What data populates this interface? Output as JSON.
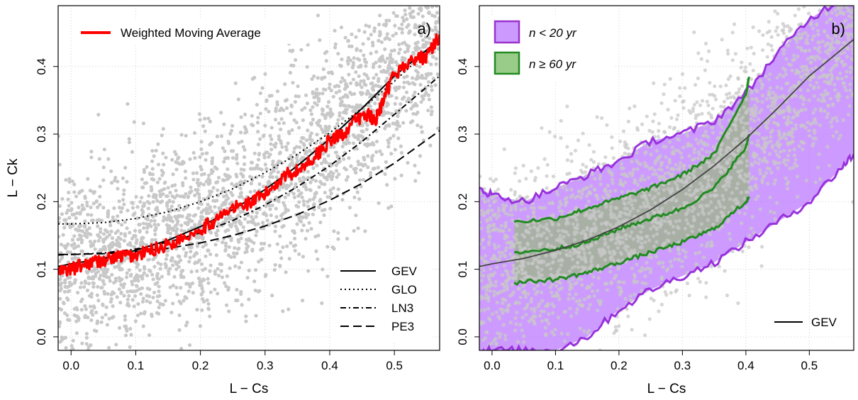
{
  "chart_data": [
    {
      "panel": "a)",
      "type": "scatter",
      "xlabel": "L − Cs",
      "ylabel": "L − Ck",
      "xlim": [
        -0.02,
        0.57
      ],
      "ylim": [
        -0.02,
        0.49
      ],
      "xticks": [
        "0.0",
        "0.1",
        "0.2",
        "0.3",
        "0.4",
        "0.5"
      ],
      "yticks": [
        "0.0",
        "0.1",
        "0.2",
        "0.3",
        "0.4"
      ],
      "grid": true,
      "scatter_color": "#c8c8c8",
      "legend_top": {
        "label": "Weighted Moving Average",
        "color": "#ff0000"
      },
      "legend_bottom": [
        {
          "label": "GEV",
          "style": "solid"
        },
        {
          "label": "GLO",
          "style": "dotted"
        },
        {
          "label": "LN3",
          "style": "dashdot"
        },
        {
          "label": "PE3",
          "style": "dashed"
        }
      ],
      "series": [
        {
          "name": "GEV",
          "style": "solid",
          "x": [
            -0.02,
            0.0,
            0.05,
            0.1,
            0.15,
            0.2,
            0.25,
            0.3,
            0.35,
            0.4,
            0.45,
            0.5,
            0.57
          ],
          "y": [
            0.104,
            0.108,
            0.116,
            0.128,
            0.143,
            0.163,
            0.188,
            0.218,
            0.253,
            0.293,
            0.338,
            0.386,
            0.44
          ]
        },
        {
          "name": "GLO",
          "style": "dotted",
          "x": [
            -0.02,
            0.0,
            0.05,
            0.1,
            0.15,
            0.2,
            0.25,
            0.3,
            0.35,
            0.4,
            0.45,
            0.5,
            0.57
          ],
          "y": [
            0.167,
            0.167,
            0.169,
            0.175,
            0.185,
            0.2,
            0.219,
            0.243,
            0.27,
            0.302,
            0.338,
            0.378,
            0.44
          ]
        },
        {
          "name": "LN3",
          "style": "dashdot",
          "x": [
            -0.02,
            0.0,
            0.05,
            0.1,
            0.15,
            0.2,
            0.25,
            0.3,
            0.35,
            0.4,
            0.45,
            0.5,
            0.57
          ],
          "y": [
            0.121,
            0.122,
            0.124,
            0.13,
            0.14,
            0.154,
            0.172,
            0.195,
            0.222,
            0.253,
            0.289,
            0.329,
            0.386
          ]
        },
        {
          "name": "PE3",
          "style": "dashed",
          "x": [
            -0.02,
            0.0,
            0.05,
            0.1,
            0.15,
            0.2,
            0.25,
            0.3,
            0.35,
            0.4,
            0.45,
            0.5,
            0.57
          ],
          "y": [
            0.122,
            0.122,
            0.123,
            0.126,
            0.131,
            0.139,
            0.15,
            0.164,
            0.181,
            0.202,
            0.227,
            0.257,
            0.305
          ]
        },
        {
          "name": "Weighted Moving Average",
          "style": "solid",
          "color": "#ff0000",
          "x": [
            -0.02,
            0.0,
            0.03,
            0.06,
            0.08,
            0.1,
            0.13,
            0.16,
            0.2,
            0.22,
            0.25,
            0.28,
            0.3,
            0.33,
            0.35,
            0.38,
            0.4,
            0.42,
            0.44,
            0.46,
            0.47,
            0.48,
            0.5,
            0.53,
            0.55,
            0.57
          ],
          "y": [
            0.095,
            0.1,
            0.11,
            0.115,
            0.12,
            0.12,
            0.13,
            0.14,
            0.16,
            0.17,
            0.19,
            0.2,
            0.21,
            0.24,
            0.245,
            0.27,
            0.29,
            0.3,
            0.32,
            0.33,
            0.32,
            0.34,
            0.39,
            0.41,
            0.415,
            0.445
          ]
        }
      ]
    },
    {
      "panel": "b)",
      "type": "area",
      "xlabel": "L − Cs",
      "ylabel": "",
      "xlim": [
        -0.02,
        0.57
      ],
      "ylim": [
        -0.02,
        0.49
      ],
      "xticks": [
        "0.0",
        "0.1",
        "0.2",
        "0.3",
        "0.4",
        "0.5"
      ],
      "yticks": [
        "0.0",
        "0.1",
        "0.2",
        "0.3",
        "0.4"
      ],
      "grid": true,
      "scatter_color": "#c8c8c8",
      "legend_top": [
        {
          "label": "n < 20 yr",
          "fill": "#cc99ff",
          "stroke": "#9933cc"
        },
        {
          "label": "n ≥ 60 yr",
          "fill": "#99cc88",
          "stroke": "#228b22"
        }
      ],
      "legend_bottom": [
        {
          "label": "GEV",
          "style": "solid"
        }
      ],
      "bands": [
        {
          "name": "n < 20 yr",
          "fill": "#b266ff",
          "stroke": "#9933dd",
          "x": [
            -0.02,
            0.0,
            0.05,
            0.1,
            0.15,
            0.2,
            0.25,
            0.3,
            0.35,
            0.4,
            0.45,
            0.5,
            0.55,
            0.57
          ],
          "upper": [
            0.22,
            0.21,
            0.2,
            0.22,
            0.24,
            0.26,
            0.29,
            0.3,
            0.32,
            0.36,
            0.42,
            0.47,
            0.5,
            0.51
          ],
          "lower": [
            -0.02,
            -0.02,
            -0.02,
            -0.02,
            0.0,
            0.04,
            0.07,
            0.09,
            0.11,
            0.14,
            0.17,
            0.2,
            0.25,
            0.27
          ]
        },
        {
          "name": "n ≥ 60 yr",
          "fill": "#99b97f",
          "stroke": "#228b22",
          "x": [
            0.035,
            0.1,
            0.15,
            0.2,
            0.25,
            0.3,
            0.35,
            0.4,
            0.405
          ],
          "upper": [
            0.17,
            0.175,
            0.19,
            0.205,
            0.22,
            0.24,
            0.27,
            0.36,
            0.385
          ],
          "lower": [
            0.08,
            0.085,
            0.095,
            0.11,
            0.125,
            0.14,
            0.16,
            0.2,
            0.205
          ],
          "median": [
            0.125,
            0.13,
            0.14,
            0.16,
            0.175,
            0.19,
            0.22,
            0.28,
            0.3
          ]
        }
      ],
      "series": [
        {
          "name": "GEV",
          "style": "solid",
          "x": [
            -0.02,
            0.0,
            0.05,
            0.1,
            0.15,
            0.2,
            0.25,
            0.3,
            0.35,
            0.4,
            0.45,
            0.5,
            0.57
          ],
          "y": [
            0.104,
            0.108,
            0.116,
            0.128,
            0.143,
            0.163,
            0.188,
            0.218,
            0.253,
            0.293,
            0.338,
            0.386,
            0.44
          ]
        }
      ]
    }
  ]
}
